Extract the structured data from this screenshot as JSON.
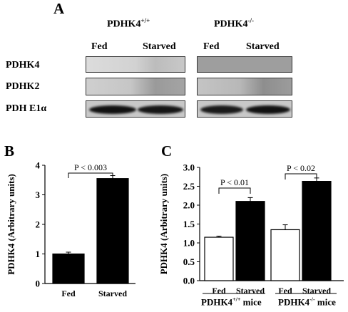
{
  "panel_a": {
    "letter": "A",
    "wt_genotype_base": "PDHK4",
    "wt_genotype_sup": "+/+",
    "ko_genotype_base": "PDHK4",
    "ko_genotype_sup": "-/-",
    "lanes": [
      "Fed",
      "Starved"
    ],
    "rows": [
      "PDHK4",
      "PDHK2",
      "PDH E1α"
    ]
  },
  "chart_data": [
    {
      "panel": "B",
      "type": "bar",
      "categories": [
        "Fed",
        "Starved"
      ],
      "values": [
        1.0,
        3.55
      ],
      "errors": [
        0.06,
        0.1
      ],
      "ylabel": "PDHK4 (Arbitrary units)",
      "ylim": [
        0,
        4
      ],
      "yticks": [
        "0",
        "1",
        "2",
        "3",
        "4"
      ],
      "annotation": "P < 0.003",
      "bar_color": "#000000"
    },
    {
      "panel": "C",
      "type": "bar",
      "categories": [
        "Fed",
        "Starved",
        "Fed",
        "Starved"
      ],
      "values": [
        1.15,
        2.1,
        1.35,
        2.63
      ],
      "errors": [
        0.03,
        0.1,
        0.13,
        0.09
      ],
      "bar_colors": [
        "#ffffff",
        "#000000",
        "#ffffff",
        "#000000"
      ],
      "ylabel": "PDHK4 (Arbitrary units)",
      "ylim": [
        0,
        3.0
      ],
      "yticks": [
        "0.0",
        "0.5",
        "1.0",
        "1.5",
        "2.0",
        "2.5",
        "3.0"
      ],
      "annotations": [
        "P < 0.01",
        "P < 0.02"
      ],
      "groups": [
        {
          "base": "PDHK4",
          "sup": "+/+",
          "suffix": " mice"
        },
        {
          "base": "PDHK4",
          "sup": "-/-",
          "suffix": " mice"
        }
      ]
    }
  ]
}
